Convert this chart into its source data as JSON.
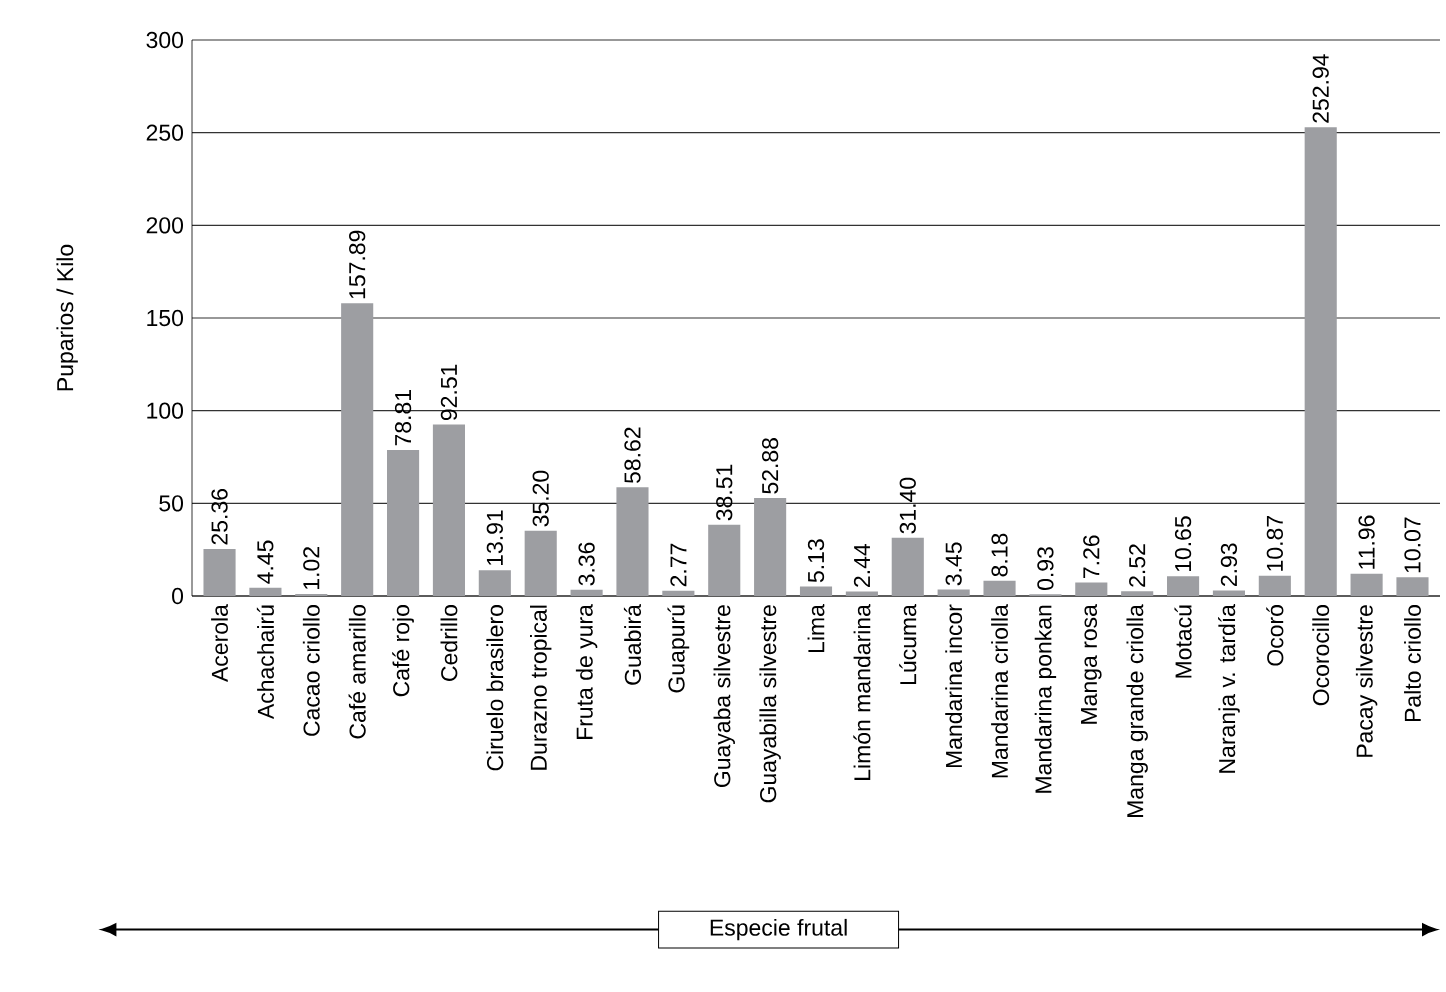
{
  "chart_data": {
    "type": "bar",
    "xlabel": "Especie frutal",
    "ylabel": "Puparios / Kilo",
    "categories": [
      "Acerola",
      "Achachairú",
      "Cacao criollo",
      "Café amarillo",
      "Café rojo",
      "Cedrillo",
      "Ciruelo brasilero",
      "Durazno tropical",
      "Fruta de yura",
      "Guabirá",
      "Guapurú",
      "Guayaba silvestre",
      "Guayabilla silvestre",
      "Lima",
      "Limón mandarina",
      "Lúcuma",
      "Mandarina incor",
      "Mandarina criolla",
      "Mandarina ponkan",
      "Manga rosa",
      "Manga grande criolla",
      "Motacú",
      "Naranja v. tardía",
      "Ocoró",
      "Ocorocillo",
      "Pacay silvestre",
      "Palto criollo"
    ],
    "values": [
      25.36,
      4.45,
      1.02,
      157.89,
      78.81,
      92.51,
      13.91,
      35.2,
      3.36,
      58.62,
      2.77,
      38.51,
      52.88,
      5.13,
      2.44,
      31.4,
      3.45,
      8.18,
      0.93,
      7.26,
      2.52,
      10.65,
      2.93,
      10.87,
      252.94,
      11.96,
      10.07
    ],
    "value_labels": [
      "25.36",
      "4.45",
      "1.02",
      "157.89",
      "78.81",
      "92.51",
      "13.91",
      "35.20",
      "3.36",
      "58.62",
      "2.77",
      "38.51",
      "52.88",
      "5.13",
      "2.44",
      "31.40",
      "3.45",
      "8.18",
      "0.93",
      "7.26",
      "2.52",
      "10.65",
      "2.93",
      "10.87",
      "252.94",
      "11.96",
      "10.07"
    ],
    "color": "#9d9ea2",
    "ylim": [
      0,
      300
    ],
    "yticks": [
      0,
      50,
      100,
      150,
      200,
      250,
      300
    ],
    "grid": "y"
  }
}
